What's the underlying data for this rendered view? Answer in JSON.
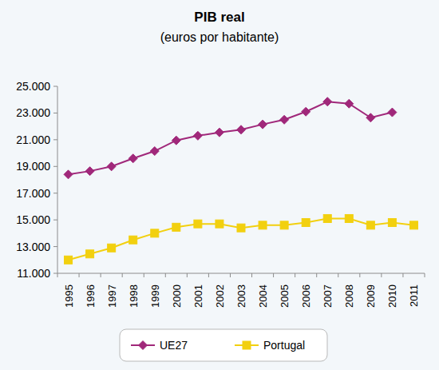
{
  "chart_data": {
    "type": "line",
    "title": "PIB real",
    "subtitle": "(euros por habitante)",
    "categories": [
      "1995",
      "1996",
      "1997",
      "1998",
      "1999",
      "2000",
      "2001",
      "2002",
      "2003",
      "2004",
      "2005",
      "2006",
      "2007",
      "2008",
      "2009",
      "2010",
      "2011"
    ],
    "series": [
      {
        "name": "UE27",
        "color": "#a0287a",
        "marker": "diamond",
        "values": [
          18400,
          18650,
          19000,
          19600,
          20150,
          20950,
          21300,
          21550,
          21750,
          22150,
          22500,
          23100,
          23850,
          23700,
          22650,
          23050,
          null
        ]
      },
      {
        "name": "Portugal",
        "color": "#f2d00f",
        "marker": "square",
        "values": [
          12000,
          12450,
          12900,
          13500,
          14000,
          14450,
          14700,
          14700,
          14400,
          14600,
          14600,
          14800,
          15100,
          15100,
          14600,
          14800,
          14600
        ]
      }
    ],
    "ylim": [
      11000,
      25000
    ],
    "yticks": [
      {
        "value": 11000,
        "label": "11.000"
      },
      {
        "value": 13000,
        "label": "13.000"
      },
      {
        "value": 15000,
        "label": "15.000"
      },
      {
        "value": 17000,
        "label": "17.000"
      },
      {
        "value": 19000,
        "label": "19.000"
      },
      {
        "value": 21000,
        "label": "21.000"
      },
      {
        "value": 23000,
        "label": "23.000"
      },
      {
        "value": 25000,
        "label": "25.000"
      }
    ],
    "grid": false,
    "legend": "bottom"
  }
}
